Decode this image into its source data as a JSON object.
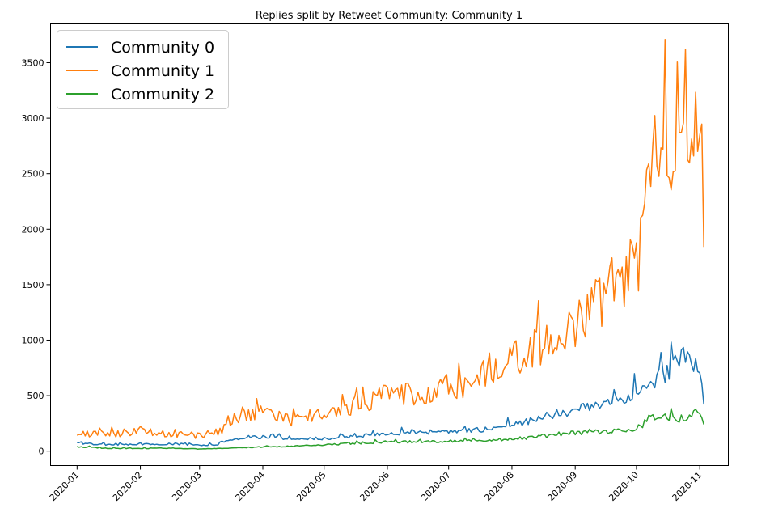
{
  "chart_data": {
    "type": "line",
    "title": "Replies split by Retweet Community: Community 1",
    "xlabel": "",
    "ylabel": "",
    "x_start": "2020-01-01",
    "x_end": "2020-11-03",
    "xlim": [
      "2019-12-19",
      "2020-11-15"
    ],
    "ylim": [
      -130,
      3850
    ],
    "x_ticks": [
      "2020-01",
      "2020-02",
      "2020-03",
      "2020-04",
      "2020-05",
      "2020-06",
      "2020-07",
      "2020-08",
      "2020-09",
      "2020-10",
      "2020-11"
    ],
    "y_ticks": [
      0,
      500,
      1000,
      1500,
      2000,
      2500,
      3000,
      3500
    ],
    "grid": false,
    "legend_position": "top-left",
    "series": [
      {
        "name": "Community 0",
        "color": "#1f77b4",
        "points": [
          [
            "2020-01-01",
            70
          ],
          [
            "2020-01-15",
            60
          ],
          [
            "2020-02-01",
            60
          ],
          [
            "2020-02-15",
            65
          ],
          [
            "2020-03-01",
            55
          ],
          [
            "2020-03-10",
            60
          ],
          [
            "2020-03-15",
            100
          ],
          [
            "2020-04-01",
            130
          ],
          [
            "2020-04-15",
            110
          ],
          [
            "2020-05-01",
            115
          ],
          [
            "2020-05-15",
            130
          ],
          [
            "2020-06-01",
            160
          ],
          [
            "2020-06-15",
            170
          ],
          [
            "2020-07-01",
            175
          ],
          [
            "2020-07-15",
            190
          ],
          [
            "2020-08-01",
            230
          ],
          [
            "2020-08-15",
            300
          ],
          [
            "2020-09-01",
            370
          ],
          [
            "2020-09-15",
            420
          ],
          [
            "2020-10-01",
            520
          ],
          [
            "2020-10-15",
            700
          ],
          [
            "2020-10-25",
            850
          ],
          [
            "2020-11-01",
            780
          ],
          [
            "2020-11-03",
            420
          ]
        ]
      },
      {
        "name": "Community 1",
        "color": "#ff7f0e",
        "points": [
          [
            "2020-01-01",
            160
          ],
          [
            "2020-01-15",
            150
          ],
          [
            "2020-02-01",
            180
          ],
          [
            "2020-02-15",
            150
          ],
          [
            "2020-03-01",
            140
          ],
          [
            "2020-03-12",
            180
          ],
          [
            "2020-03-15",
            280
          ],
          [
            "2020-04-01",
            360
          ],
          [
            "2020-04-15",
            280
          ],
          [
            "2020-05-01",
            340
          ],
          [
            "2020-05-15",
            380
          ],
          [
            "2020-06-01",
            520
          ],
          [
            "2020-06-15",
            510
          ],
          [
            "2020-07-01",
            560
          ],
          [
            "2020-07-15",
            620
          ],
          [
            "2020-08-01",
            820
          ],
          [
            "2020-08-15",
            950
          ],
          [
            "2020-09-01",
            1150
          ],
          [
            "2020-09-15",
            1400
          ],
          [
            "2020-10-01",
            1700
          ],
          [
            "2020-10-10",
            2600
          ],
          [
            "2020-10-20",
            2800
          ],
          [
            "2020-11-01",
            3400
          ],
          [
            "2020-11-03",
            1840
          ]
        ]
      },
      {
        "name": "Community 2",
        "color": "#2ca02c",
        "points": [
          [
            "2020-01-01",
            40
          ],
          [
            "2020-01-15",
            25
          ],
          [
            "2020-02-01",
            25
          ],
          [
            "2020-02-15",
            25
          ],
          [
            "2020-03-01",
            20
          ],
          [
            "2020-03-15",
            25
          ],
          [
            "2020-04-01",
            35
          ],
          [
            "2020-04-15",
            45
          ],
          [
            "2020-05-01",
            55
          ],
          [
            "2020-05-15",
            70
          ],
          [
            "2020-06-01",
            80
          ],
          [
            "2020-06-15",
            85
          ],
          [
            "2020-07-01",
            90
          ],
          [
            "2020-07-15",
            95
          ],
          [
            "2020-08-01",
            110
          ],
          [
            "2020-08-15",
            130
          ],
          [
            "2020-09-01",
            165
          ],
          [
            "2020-09-15",
            170
          ],
          [
            "2020-10-01",
            200
          ],
          [
            "2020-10-10",
            320
          ],
          [
            "2020-10-20",
            280
          ],
          [
            "2020-11-01",
            350
          ],
          [
            "2020-11-03",
            240
          ]
        ]
      }
    ]
  }
}
